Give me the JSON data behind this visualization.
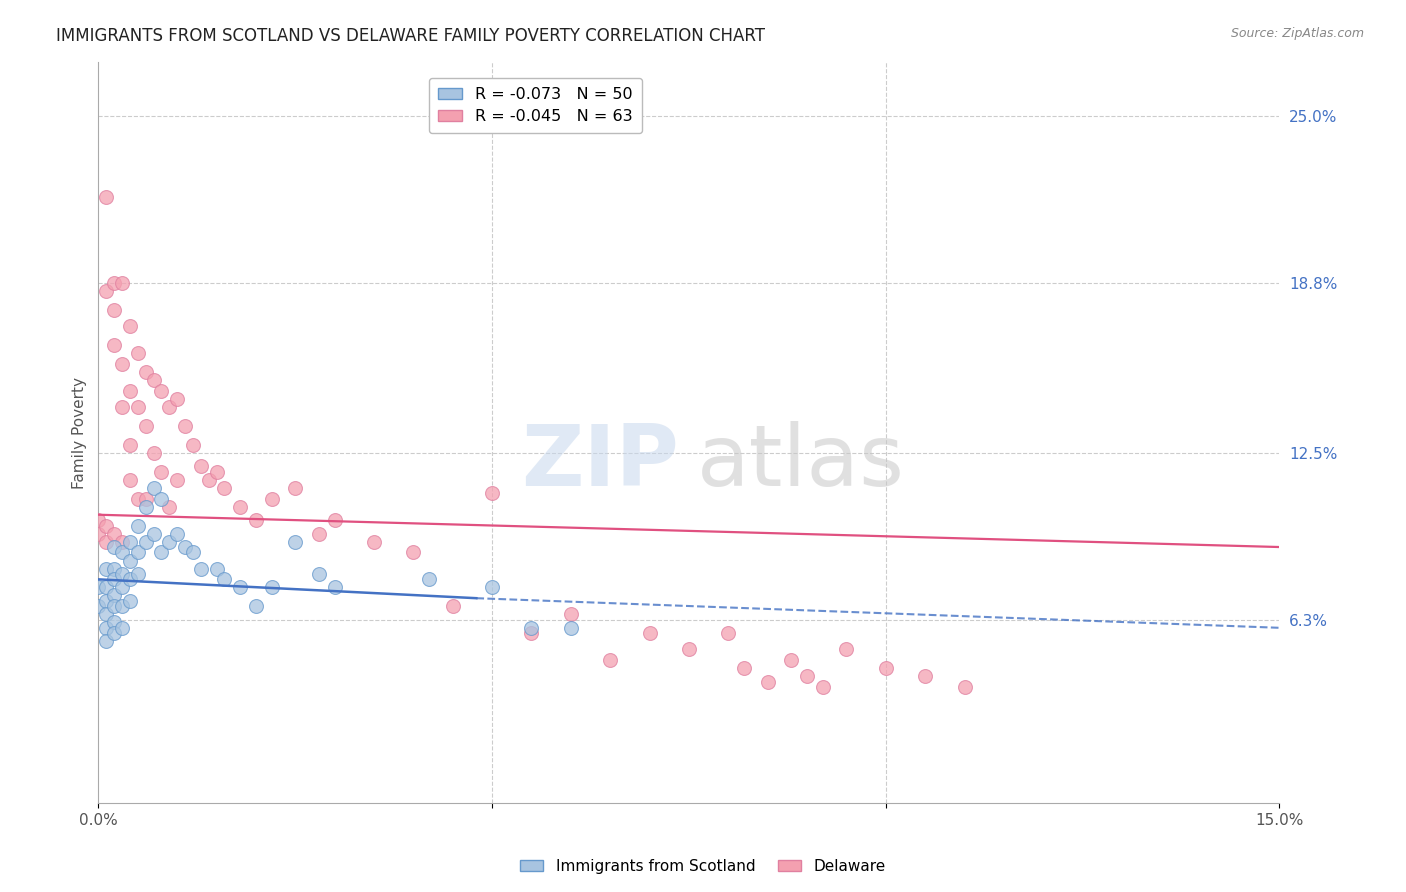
{
  "title": "IMMIGRANTS FROM SCOTLAND VS DELAWARE FAMILY POVERTY CORRELATION CHART",
  "source": "Source: ZipAtlas.com",
  "ylabel": "Family Poverty",
  "xlim": [
    0.0,
    0.15
  ],
  "ylim": [
    -0.005,
    0.27
  ],
  "ytick_labels_right": [
    "25.0%",
    "18.8%",
    "12.5%",
    "6.3%"
  ],
  "ytick_values_right": [
    0.25,
    0.188,
    0.125,
    0.063
  ],
  "grid_color": "#cccccc",
  "background_color": "#ffffff",
  "legend_entries": [
    {
      "label": "R = -0.073   N = 50"
    },
    {
      "label": "R = -0.045   N = 63"
    }
  ],
  "scatter_blue_x": [
    0.0,
    0.0,
    0.001,
    0.001,
    0.001,
    0.001,
    0.001,
    0.001,
    0.002,
    0.002,
    0.002,
    0.002,
    0.002,
    0.002,
    0.002,
    0.003,
    0.003,
    0.003,
    0.003,
    0.003,
    0.004,
    0.004,
    0.004,
    0.004,
    0.005,
    0.005,
    0.005,
    0.006,
    0.006,
    0.007,
    0.007,
    0.008,
    0.008,
    0.009,
    0.01,
    0.011,
    0.012,
    0.013,
    0.015,
    0.016,
    0.018,
    0.02,
    0.022,
    0.025,
    0.028,
    0.03,
    0.042,
    0.05,
    0.055,
    0.06
  ],
  "scatter_blue_y": [
    0.075,
    0.068,
    0.082,
    0.075,
    0.07,
    0.065,
    0.06,
    0.055,
    0.09,
    0.082,
    0.078,
    0.072,
    0.068,
    0.062,
    0.058,
    0.088,
    0.08,
    0.075,
    0.068,
    0.06,
    0.092,
    0.085,
    0.078,
    0.07,
    0.098,
    0.088,
    0.08,
    0.105,
    0.092,
    0.112,
    0.095,
    0.108,
    0.088,
    0.092,
    0.095,
    0.09,
    0.088,
    0.082,
    0.082,
    0.078,
    0.075,
    0.068,
    0.075,
    0.092,
    0.08,
    0.075,
    0.078,
    0.075,
    0.06,
    0.06
  ],
  "scatter_pink_x": [
    0.0,
    0.0,
    0.001,
    0.001,
    0.001,
    0.001,
    0.002,
    0.002,
    0.002,
    0.002,
    0.003,
    0.003,
    0.003,
    0.003,
    0.004,
    0.004,
    0.004,
    0.004,
    0.005,
    0.005,
    0.005,
    0.006,
    0.006,
    0.006,
    0.007,
    0.007,
    0.008,
    0.008,
    0.009,
    0.009,
    0.01,
    0.01,
    0.011,
    0.012,
    0.013,
    0.014,
    0.015,
    0.016,
    0.018,
    0.02,
    0.022,
    0.025,
    0.028,
    0.03,
    0.035,
    0.04,
    0.045,
    0.05,
    0.055,
    0.06,
    0.065,
    0.07,
    0.075,
    0.08,
    0.082,
    0.085,
    0.088,
    0.09,
    0.092,
    0.095,
    0.1,
    0.105,
    0.11
  ],
  "scatter_pink_y": [
    0.1,
    0.095,
    0.22,
    0.185,
    0.098,
    0.092,
    0.188,
    0.178,
    0.165,
    0.095,
    0.188,
    0.158,
    0.142,
    0.092,
    0.172,
    0.148,
    0.128,
    0.115,
    0.162,
    0.142,
    0.108,
    0.155,
    0.135,
    0.108,
    0.152,
    0.125,
    0.148,
    0.118,
    0.142,
    0.105,
    0.145,
    0.115,
    0.135,
    0.128,
    0.12,
    0.115,
    0.118,
    0.112,
    0.105,
    0.1,
    0.108,
    0.112,
    0.095,
    0.1,
    0.092,
    0.088,
    0.068,
    0.11,
    0.058,
    0.065,
    0.048,
    0.058,
    0.052,
    0.058,
    0.045,
    0.04,
    0.048,
    0.042,
    0.038,
    0.052,
    0.045,
    0.042,
    0.038
  ],
  "trendline_blue_x0": 0.0,
  "trendline_blue_y0": 0.078,
  "trendline_blue_x_solid_end": 0.048,
  "trendline_blue_y_solid_end": 0.071,
  "trendline_blue_x1": 0.15,
  "trendline_blue_y1": 0.06,
  "trendline_pink_x0": 0.0,
  "trendline_pink_y0": 0.102,
  "trendline_pink_x1": 0.15,
  "trendline_pink_y1": 0.09,
  "blue_color": "#a8c4e0",
  "blue_edge": "#6699cc",
  "blue_line": "#4472c4",
  "pink_color": "#f4a0b0",
  "pink_edge": "#e080a0",
  "pink_line": "#e05080",
  "marker_size": 100,
  "right_label_color": "#4472c4",
  "title_color": "#222222",
  "source_color": "#888888"
}
